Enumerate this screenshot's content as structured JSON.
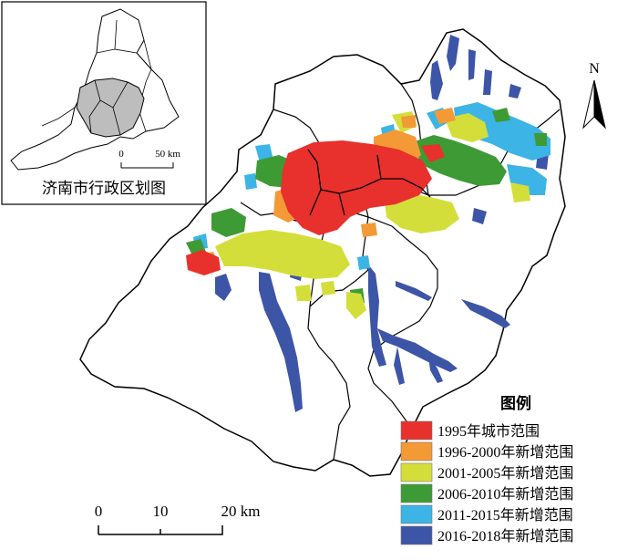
{
  "inset": {
    "title": "济南市行政区划图",
    "scale_labels": [
      "0",
      "50 km"
    ]
  },
  "north_arrow": {
    "label": "N"
  },
  "scale_bar": {
    "labels": [
      "0",
      "10",
      "20 km"
    ]
  },
  "legend": {
    "title": "图例",
    "items": [
      {
        "label": "1995年城市范围",
        "color": "#e8302c"
      },
      {
        "label": "1996-2000年新增范围",
        "color": "#f39a36"
      },
      {
        "label": "2001-2005年新增范围",
        "color": "#d4de3a"
      },
      {
        "label": "2006-2010年新增范围",
        "color": "#3e9a35"
      },
      {
        "label": "2011-2015年新增范围",
        "color": "#3cb4e5"
      },
      {
        "label": "2016-2018年新增范围",
        "color": "#3d55a6"
      }
    ]
  }
}
